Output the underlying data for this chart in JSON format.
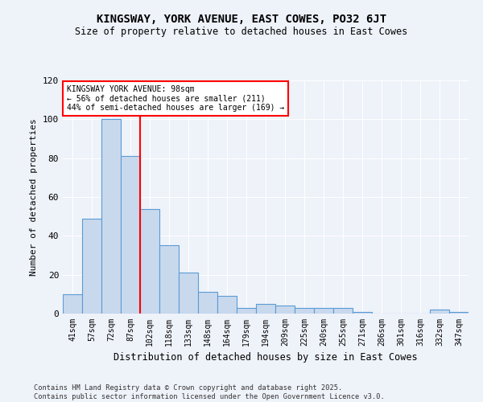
{
  "title": "KINGSWAY, YORK AVENUE, EAST COWES, PO32 6JT",
  "subtitle": "Size of property relative to detached houses in East Cowes",
  "xlabel": "Distribution of detached houses by size in East Cowes",
  "ylabel": "Number of detached properties",
  "categories": [
    "41sqm",
    "57sqm",
    "72sqm",
    "87sqm",
    "102sqm",
    "118sqm",
    "133sqm",
    "148sqm",
    "164sqm",
    "179sqm",
    "194sqm",
    "209sqm",
    "225sqm",
    "240sqm",
    "255sqm",
    "271sqm",
    "286sqm",
    "301sqm",
    "316sqm",
    "332sqm",
    "347sqm"
  ],
  "values": [
    10,
    49,
    100,
    81,
    54,
    35,
    21,
    11,
    9,
    3,
    5,
    4,
    3,
    3,
    3,
    1,
    0,
    0,
    0,
    2,
    1
  ],
  "bar_color": "#c9d9ed",
  "bar_edge_color": "#5b9bd5",
  "property_label": "KINGSWAY YORK AVENUE: 98sqm",
  "pct_smaller": 56,
  "n_smaller": 211,
  "pct_larger_semi": 44,
  "n_larger_semi": 169,
  "vline_color": "red",
  "background_color": "#eef2f9",
  "grid_color": "#ffffff",
  "footer_line1": "Contains HM Land Registry data © Crown copyright and database right 2025.",
  "footer_line2": "Contains public sector information licensed under the Open Government Licence v3.0.",
  "ylim": [
    0,
    120
  ],
  "yticks": [
    0,
    20,
    40,
    60,
    80,
    100,
    120
  ]
}
